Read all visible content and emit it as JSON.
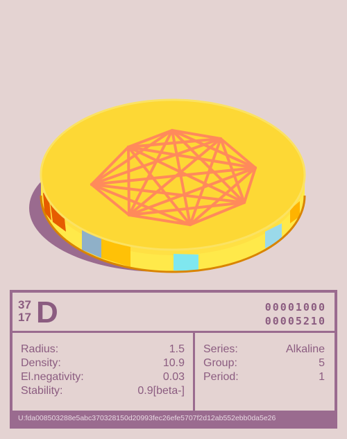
{
  "colors": {
    "background": "#e4d3d2",
    "accent": "#9a6b8f",
    "coin_top": "#fdd835",
    "coin_side": "#ffd54f",
    "graph": "#ff8a5b"
  },
  "icons": [
    "coin-icon",
    "complete-graph-icon"
  ],
  "element": {
    "mass_number": "37",
    "atomic_number": "17",
    "symbol": "D",
    "code_1": "00001000",
    "code_2": "00005210"
  },
  "properties": [
    {
      "label": "Radius:",
      "value": "1.5"
    },
    {
      "label": "Density:",
      "value": "10.9"
    },
    {
      "label": "El.negativity:",
      "value": "0.03"
    },
    {
      "label": "Stability:",
      "value": "0.9[beta-]"
    }
  ],
  "classification": [
    {
      "label": "Series:",
      "value": "Alkaline"
    },
    {
      "label": "Group:",
      "value": "5"
    },
    {
      "label": "Period:",
      "value": "1"
    }
  ],
  "footer": {
    "hash": "U:fda008503288e5abc370328150d20993fec26efe5707f2d12ab552ebb0da5e26"
  }
}
